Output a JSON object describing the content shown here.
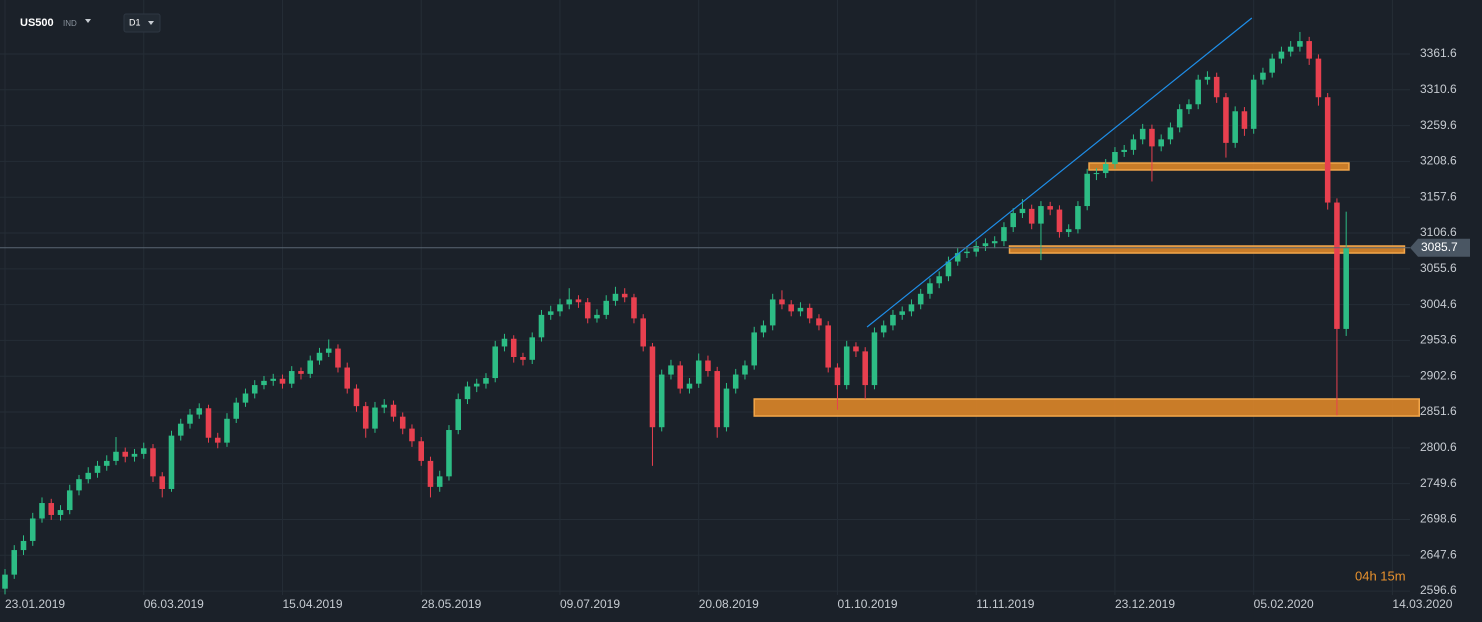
{
  "chart_data": {
    "type": "candlestick",
    "symbol": "US500",
    "market": "IND",
    "timeframe": "D1",
    "candles": [
      [
        2600,
        2628,
        2592,
        2620
      ],
      [
        2620,
        2662,
        2614,
        2655
      ],
      [
        2655,
        2676,
        2648,
        2668
      ],
      [
        2668,
        2708,
        2661,
        2700
      ],
      [
        2700,
        2730,
        2694,
        2722
      ],
      [
        2722,
        2728,
        2698,
        2705
      ],
      [
        2705,
        2719,
        2697,
        2712
      ],
      [
        2712,
        2748,
        2706,
        2740
      ],
      [
        2740,
        2762,
        2733,
        2756
      ],
      [
        2756,
        2773,
        2750,
        2765
      ],
      [
        2765,
        2782,
        2758,
        2775
      ],
      [
        2775,
        2790,
        2768,
        2782
      ],
      [
        2782,
        2816,
        2776,
        2795
      ],
      [
        2795,
        2801,
        2780,
        2788
      ],
      [
        2788,
        2799,
        2781,
        2792
      ],
      [
        2792,
        2808,
        2785,
        2800
      ],
      [
        2800,
        2806,
        2752,
        2760
      ],
      [
        2760,
        2766,
        2730,
        2742
      ],
      [
        2742,
        2825,
        2738,
        2818
      ],
      [
        2818,
        2842,
        2811,
        2835
      ],
      [
        2835,
        2856,
        2828,
        2848
      ],
      [
        2848,
        2864,
        2842,
        2857
      ],
      [
        2857,
        2862,
        2808,
        2815
      ],
      [
        2815,
        2822,
        2800,
        2808
      ],
      [
        2808,
        2850,
        2802,
        2842
      ],
      [
        2842,
        2872,
        2836,
        2865
      ],
      [
        2865,
        2885,
        2859,
        2878
      ],
      [
        2878,
        2897,
        2871,
        2890
      ],
      [
        2890,
        2903,
        2884,
        2896
      ],
      [
        2896,
        2906,
        2889,
        2899
      ],
      [
        2899,
        2905,
        2885,
        2892
      ],
      [
        2892,
        2917,
        2886,
        2910
      ],
      [
        2910,
        2915,
        2898,
        2906
      ],
      [
        2906,
        2932,
        2900,
        2925
      ],
      [
        2925,
        2943,
        2919,
        2936
      ],
      [
        2936,
        2955,
        2930,
        2942
      ],
      [
        2942,
        2948,
        2908,
        2915
      ],
      [
        2915,
        2922,
        2878,
        2885
      ],
      [
        2885,
        2891,
        2852,
        2860
      ],
      [
        2860,
        2866,
        2815,
        2828
      ],
      [
        2828,
        2866,
        2822,
        2858
      ],
      [
        2858,
        2870,
        2850,
        2862
      ],
      [
        2862,
        2868,
        2838,
        2845
      ],
      [
        2845,
        2851,
        2820,
        2828
      ],
      [
        2828,
        2834,
        2802,
        2810
      ],
      [
        2810,
        2816,
        2775,
        2782
      ],
      [
        2782,
        2788,
        2730,
        2745
      ],
      [
        2745,
        2768,
        2738,
        2760
      ],
      [
        2760,
        2833,
        2754,
        2826
      ],
      [
        2826,
        2878,
        2820,
        2870
      ],
      [
        2870,
        2895,
        2863,
        2888
      ],
      [
        2888,
        2899,
        2880,
        2892
      ],
      [
        2892,
        2907,
        2885,
        2900
      ],
      [
        2900,
        2953,
        2894,
        2945
      ],
      [
        2945,
        2963,
        2938,
        2956
      ],
      [
        2956,
        2961,
        2922,
        2930
      ],
      [
        2930,
        2936,
        2918,
        2926
      ],
      [
        2926,
        2965,
        2920,
        2958
      ],
      [
        2958,
        2997,
        2952,
        2990
      ],
      [
        2990,
        3003,
        2983,
        2995
      ],
      [
        2995,
        3013,
        2988,
        3005
      ],
      [
        3005,
        3028,
        2998,
        3012
      ],
      [
        3012,
        3018,
        3000,
        3008
      ],
      [
        3008,
        3014,
        2978,
        2985
      ],
      [
        2985,
        2998,
        2979,
        2990
      ],
      [
        2990,
        3018,
        2984,
        3010
      ],
      [
        3010,
        3030,
        3003,
        3020
      ],
      [
        3020,
        3028,
        3008,
        3015
      ],
      [
        3015,
        3020,
        2978,
        2985
      ],
      [
        2985,
        2991,
        2938,
        2945
      ],
      [
        2945,
        2950,
        2775,
        2830
      ],
      [
        2830,
        2912,
        2824,
        2905
      ],
      [
        2905,
        2926,
        2898,
        2918
      ],
      [
        2918,
        2924,
        2878,
        2885
      ],
      [
        2885,
        2900,
        2878,
        2892
      ],
      [
        2892,
        2935,
        2886,
        2925
      ],
      [
        2925,
        2932,
        2902,
        2910
      ],
      [
        2910,
        2916,
        2815,
        2830
      ],
      [
        2830,
        2893,
        2824,
        2885
      ],
      [
        2885,
        2913,
        2878,
        2905
      ],
      [
        2905,
        2925,
        2898,
        2918
      ],
      [
        2918,
        2973,
        2912,
        2965
      ],
      [
        2965,
        2982,
        2958,
        2975
      ],
      [
        2975,
        3020,
        2968,
        3012
      ],
      [
        3012,
        3025,
        2998,
        3005
      ],
      [
        3005,
        3011,
        2988,
        2995
      ],
      [
        2995,
        3008,
        2988,
        3000
      ],
      [
        3000,
        3006,
        2978,
        2985
      ],
      [
        2985,
        2991,
        2968,
        2975
      ],
      [
        2975,
        2981,
        2908,
        2915
      ],
      [
        2915,
        2921,
        2855,
        2890
      ],
      [
        2890,
        2953,
        2884,
        2945
      ],
      [
        2945,
        2951,
        2930,
        2938
      ],
      [
        2938,
        2944,
        2870,
        2890
      ],
      [
        2890,
        2972,
        2884,
        2965
      ],
      [
        2965,
        2982,
        2958,
        2975
      ],
      [
        2975,
        2997,
        2968,
        2990
      ],
      [
        2990,
        3002,
        2983,
        2995
      ],
      [
        2995,
        3012,
        2988,
        3005
      ],
      [
        3005,
        3027,
        2998,
        3020
      ],
      [
        3020,
        3042,
        3013,
        3035
      ],
      [
        3035,
        3052,
        3028,
        3045
      ],
      [
        3045,
        3073,
        3038,
        3066
      ],
      [
        3066,
        3085,
        3060,
        3078
      ],
      [
        3078,
        3088,
        3071,
        3080
      ],
      [
        3080,
        3095,
        3073,
        3088
      ],
      [
        3088,
        3099,
        3081,
        3092
      ],
      [
        3092,
        3102,
        3085,
        3095
      ],
      [
        3095,
        3122,
        3088,
        3115
      ],
      [
        3115,
        3142,
        3108,
        3135
      ],
      [
        3135,
        3155,
        3128,
        3141
      ],
      [
        3141,
        3147,
        3112,
        3120
      ],
      [
        3120,
        3152,
        3068,
        3145
      ],
      [
        3145,
        3151,
        3132,
        3140
      ],
      [
        3140,
        3146,
        3100,
        3108
      ],
      [
        3108,
        3119,
        3101,
        3112
      ],
      [
        3112,
        3152,
        3106,
        3145
      ],
      [
        3145,
        3198,
        3139,
        3191
      ],
      [
        3191,
        3199,
        3182,
        3192
      ],
      [
        3192,
        3212,
        3185,
        3205
      ],
      [
        3205,
        3229,
        3198,
        3222
      ],
      [
        3222,
        3232,
        3215,
        3225
      ],
      [
        3225,
        3247,
        3218,
        3240
      ],
      [
        3240,
        3262,
        3233,
        3255
      ],
      [
        3255,
        3261,
        3180,
        3230
      ],
      [
        3230,
        3247,
        3223,
        3240
      ],
      [
        3240,
        3264,
        3233,
        3257
      ],
      [
        3257,
        3290,
        3250,
        3283
      ],
      [
        3283,
        3297,
        3276,
        3290
      ],
      [
        3290,
        3332,
        3283,
        3325
      ],
      [
        3325,
        3337,
        3318,
        3329
      ],
      [
        3329,
        3335,
        3292,
        3300
      ],
      [
        3300,
        3306,
        3214,
        3235
      ],
      [
        3235,
        3287,
        3228,
        3280
      ],
      [
        3280,
        3286,
        3245,
        3255
      ],
      [
        3255,
        3332,
        3248,
        3325
      ],
      [
        3325,
        3342,
        3318,
        3335
      ],
      [
        3335,
        3362,
        3328,
        3355
      ],
      [
        3355,
        3372,
        3348,
        3365
      ],
      [
        3365,
        3380,
        3358,
        3372
      ],
      [
        3372,
        3393,
        3365,
        3380
      ],
      [
        3380,
        3386,
        3346,
        3355
      ],
      [
        3355,
        3361,
        3288,
        3300
      ],
      [
        3300,
        3306,
        3140,
        3150
      ],
      [
        3150,
        3156,
        2847,
        2970
      ],
      [
        2970,
        3137,
        2960,
        3085.7
      ]
    ],
    "colors": {
      "up": "#2dbd85",
      "down": "#e8404f"
    },
    "xlim": [
      -0.54,
      151.9
    ],
    "xticks": [
      {
        "value": 0,
        "label": "23.01.2019"
      },
      {
        "value": 15,
        "label": "06.03.2019"
      },
      {
        "value": 30,
        "label": "15.04.2019"
      },
      {
        "value": 45,
        "label": "28.05.2019"
      },
      {
        "value": 60,
        "label": "09.07.2019"
      },
      {
        "value": 75,
        "label": "20.08.2019"
      },
      {
        "value": 90,
        "label": "01.10.2019"
      },
      {
        "value": 105,
        "label": "11.11.2019"
      },
      {
        "value": 120,
        "label": "23.12.2019"
      },
      {
        "value": 135,
        "label": "05.02.2020"
      },
      {
        "value": 150,
        "label": "14.03.2020"
      }
    ],
    "ylim": [
      2591,
      3438.5
    ],
    "yticks": [
      2596.6,
      2647.6,
      2698.6,
      2749.6,
      2800.6,
      2851.6,
      2902.6,
      2953.6,
      3004.6,
      3055.6,
      3106.6,
      3157.6,
      3208.6,
      3259.6,
      3310.6,
      3361.6
    ],
    "grid": true,
    "last_price": 3085.7,
    "timer": "04h 15m",
    "zones": [
      {
        "x": [
          81,
          152.9
        ],
        "y": [
          2845.9,
          2870.2
        ]
      },
      {
        "x": [
          108.6,
          151.3
        ],
        "y": [
          3078.1,
          3088.1
        ]
      },
      {
        "x": [
          117.2,
          145.3
        ],
        "y": [
          3196.4,
          3206.3
        ]
      }
    ],
    "trend_line": {
      "x": [
        93.2,
        134.8
      ],
      "y": [
        2972.7,
        3412.9
      ]
    }
  }
}
